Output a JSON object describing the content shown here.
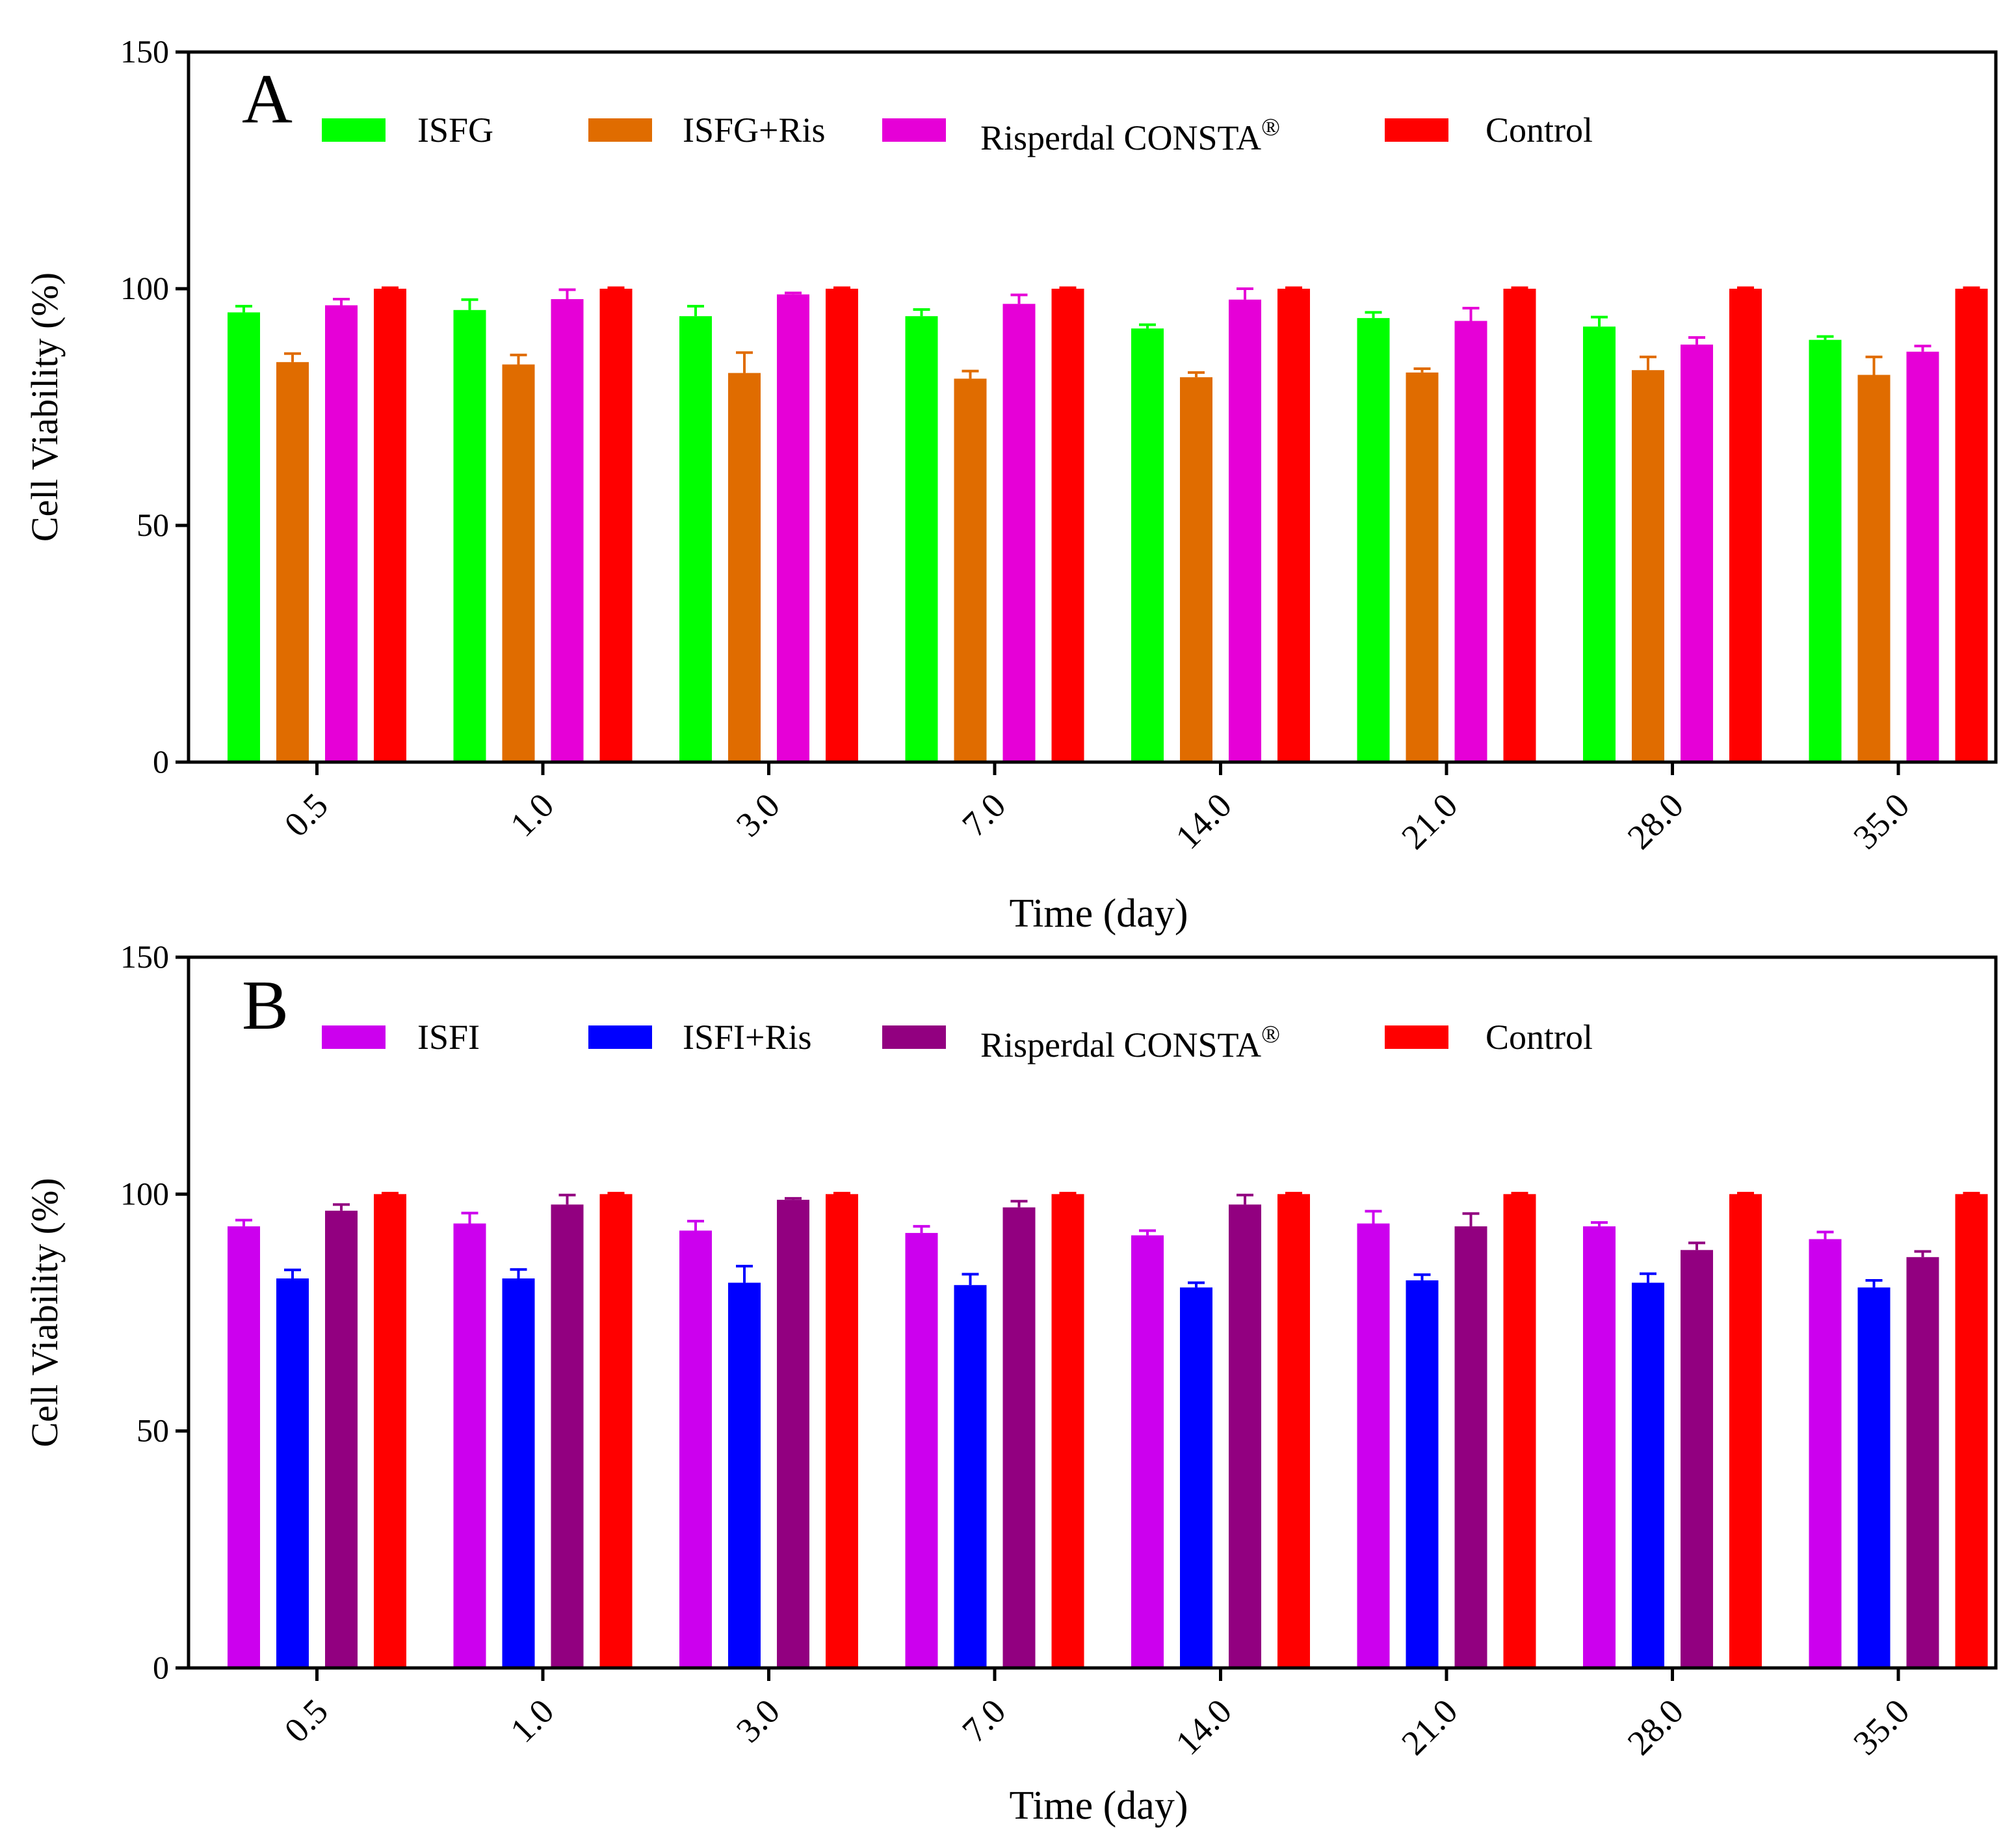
{
  "chart_data": [
    {
      "panel": "A",
      "type": "bar",
      "categories": [
        "0.5",
        "1.0",
        "3.0",
        "7.0",
        "14.0",
        "21.0",
        "28.0",
        "35.0"
      ],
      "xlabel": "Time (day)",
      "ylabel": "Cell Viability (%)",
      "ylim": [
        0,
        150
      ],
      "yticks": [
        "0",
        "50",
        "100",
        "150"
      ],
      "legend_position": "top",
      "series": [
        {
          "name": "ISFG",
          "color": "#00ff00",
          "values": [
            95,
            95.5,
            94.2,
            94.2,
            91.6,
            93.8,
            92,
            89.2
          ],
          "errors": [
            1.3,
            2.2,
            2.1,
            1.4,
            0.8,
            1.2,
            2,
            0.7
          ]
        },
        {
          "name": "ISFG+Ris",
          "color": "#e06c00",
          "values": [
            84.5,
            84,
            82.2,
            81,
            81.3,
            82.3,
            82.8,
            81.8
          ],
          "errors": [
            1.8,
            2,
            4.3,
            1.6,
            1,
            0.8,
            2.8,
            3.8
          ]
        },
        {
          "name": "Risperdal CONSTA",
          "name_suffix": "®",
          "color": "#e600d7",
          "values": [
            96.5,
            97.8,
            98.8,
            96.8,
            97.7,
            93.2,
            88.2,
            86.7
          ],
          "errors": [
            1.3,
            2,
            0.3,
            1.9,
            2.3,
            2.7,
            1.5,
            1.2
          ]
        },
        {
          "name": "Control",
          "color": "#ff0000",
          "values": [
            100,
            100,
            100,
            100,
            100,
            100,
            100,
            100
          ],
          "errors": [
            0.2,
            0.2,
            0.2,
            0.2,
            0.2,
            0.2,
            0.2,
            0.2
          ]
        }
      ]
    },
    {
      "panel": "B",
      "type": "bar",
      "categories": [
        "0.5",
        "1.0",
        "3.0",
        "7.0",
        "14.0",
        "21.0",
        "28.0",
        "35.0"
      ],
      "xlabel": "Time (day)",
      "ylabel": "Cell Viability (%)",
      "ylim": [
        0,
        150
      ],
      "yticks": [
        "0",
        "50",
        "100",
        "150"
      ],
      "legend_position": "top",
      "series": [
        {
          "name": "ISFI",
          "color": "#cc00ee",
          "values": [
            93.2,
            93.8,
            92.3,
            91.8,
            91.3,
            93.8,
            93.2,
            90.5
          ],
          "errors": [
            1.3,
            2.2,
            2,
            1.4,
            1,
            2.6,
            0.8,
            1.5
          ]
        },
        {
          "name": "ISFI+Ris",
          "color": "#0000ff",
          "values": [
            82.2,
            82.2,
            81.3,
            80.8,
            80.3,
            81.8,
            81.3,
            80.3
          ],
          "errors": [
            1.8,
            1.9,
            3.5,
            2.3,
            1,
            1.2,
            1.9,
            1.5
          ]
        },
        {
          "name": "Risperdal CONSTA",
          "name_suffix": "®",
          "color": "#920080",
          "values": [
            96.5,
            97.8,
            98.8,
            97.2,
            97.8,
            93.2,
            88.2,
            86.7
          ],
          "errors": [
            1.3,
            2,
            0.3,
            1.3,
            2,
            2.7,
            1.5,
            1.2
          ]
        },
        {
          "name": "Control",
          "color": "#ff0000",
          "values": [
            100,
            100,
            100,
            100,
            100,
            100,
            100,
            100
          ],
          "errors": [
            0.2,
            0.2,
            0.2,
            0.2,
            0.2,
            0.2,
            0.2,
            0.2
          ]
        }
      ]
    }
  ]
}
